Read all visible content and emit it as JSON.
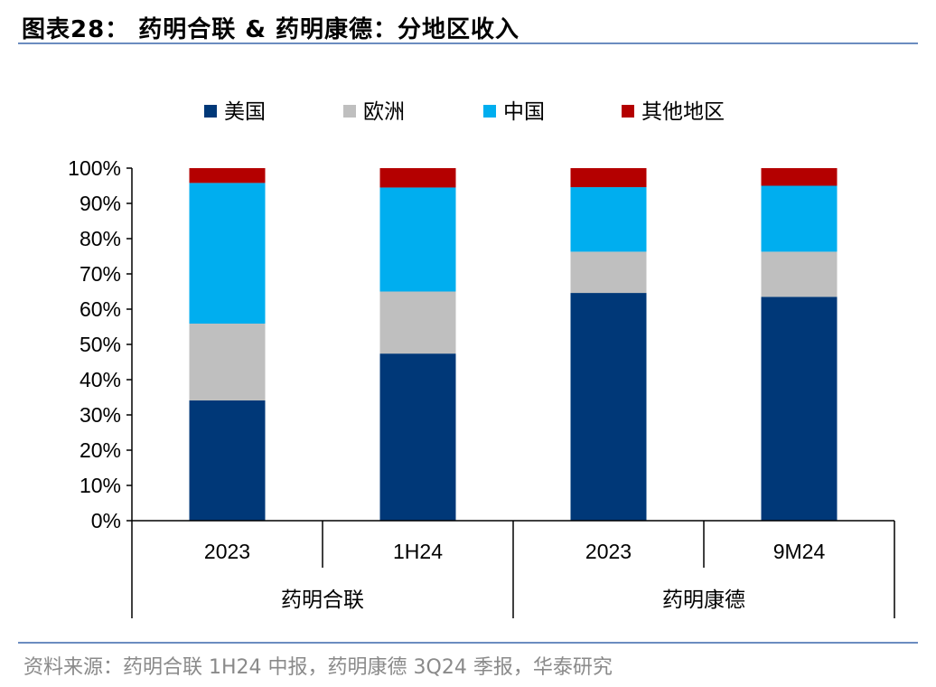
{
  "title": "图表28：  药明合联 & 药明康德：分地区收入",
  "source": "资料来源：药明合联 1H24 中报，药明康德 3Q24 季报，华泰研究",
  "chart_data": {
    "type": "bar",
    "stacked": true,
    "categories": [
      "2023",
      "1H24",
      "2023",
      "9M24"
    ],
    "groups": [
      {
        "label": "药明合联",
        "categories": [
          "2023",
          "1H24"
        ]
      },
      {
        "label": "药明康德",
        "categories": [
          "2023",
          "9M24"
        ]
      }
    ],
    "series": [
      {
        "name": "美国",
        "color": "#003878",
        "values": [
          34.1,
          47.4,
          64.6,
          63.5
        ]
      },
      {
        "name": "欧洲",
        "color": "#bfbfbf",
        "values": [
          21.8,
          17.6,
          11.7,
          12.8
        ]
      },
      {
        "name": "中国",
        "color": "#00aeef",
        "values": [
          39.9,
          29.5,
          18.3,
          18.7
        ]
      },
      {
        "name": "其他地区",
        "color": "#b40000",
        "values": [
          4.2,
          5.5,
          5.4,
          5.0
        ]
      }
    ],
    "ylim": [
      0,
      100
    ],
    "yticks": [
      "0%",
      "10%",
      "20%",
      "30%",
      "40%",
      "50%",
      "60%",
      "70%",
      "80%",
      "90%",
      "100%"
    ],
    "legend": "top",
    "grid": false
  }
}
